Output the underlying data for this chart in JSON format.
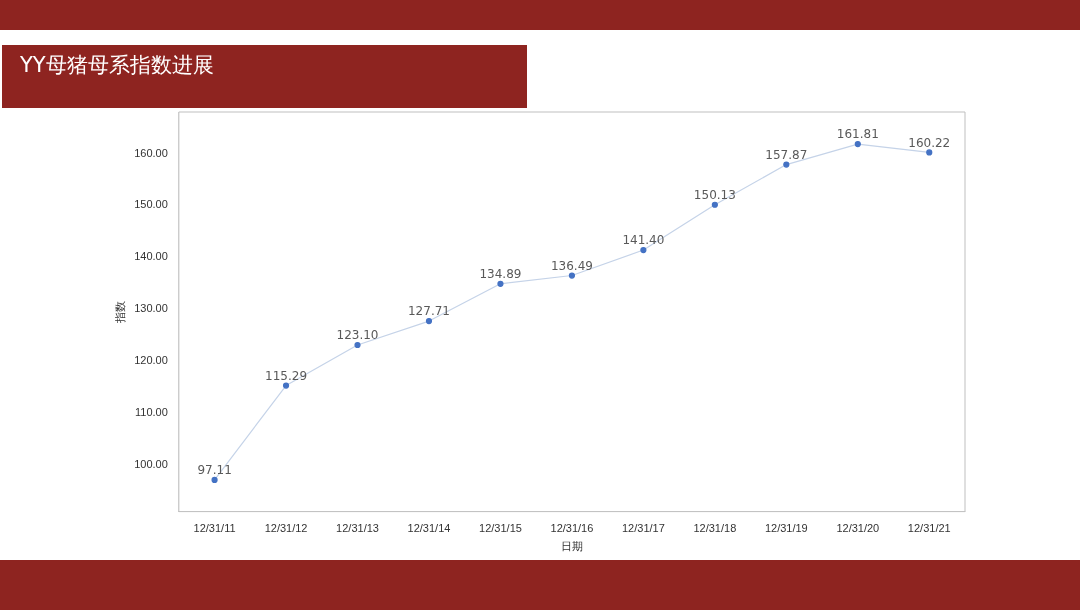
{
  "chart_data": {
    "type": "line",
    "title": "YY母猪母系指数进展",
    "xlabel": "日期",
    "ylabel": "指数",
    "categories": [
      "12/31/11",
      "12/31/12",
      "12/31/13",
      "12/31/14",
      "12/31/15",
      "12/31/16",
      "12/31/17",
      "12/31/18",
      "12/31/19",
      "12/31/20",
      "12/31/21"
    ],
    "series": [
      {
        "color": "#4472c4",
        "values": [
          97.11,
          115.29,
          123.1,
          127.71,
          134.89,
          136.49,
          141.4,
          150.13,
          157.87,
          161.81,
          160.22
        ],
        "value_labels": [
          "97.11",
          "115.29",
          "123.10",
          "127.71",
          "134.89",
          "136.49",
          "141.40",
          "150.13",
          "157.87",
          "161.81",
          "160.22"
        ]
      }
    ],
    "ylim": [
      91,
      168
    ],
    "yticks": [
      {
        "value": 100,
        "label": "100.00"
      },
      {
        "value": 110,
        "label": "110.00"
      },
      {
        "value": 120,
        "label": "120.00"
      },
      {
        "value": 130,
        "label": "130.00"
      },
      {
        "value": 140,
        "label": "140.00"
      },
      {
        "value": 150,
        "label": "150.00"
      },
      {
        "value": 160,
        "label": "160.00"
      }
    ],
    "grid": false,
    "legend": false,
    "marker": "circle",
    "line_style": "solid"
  }
}
